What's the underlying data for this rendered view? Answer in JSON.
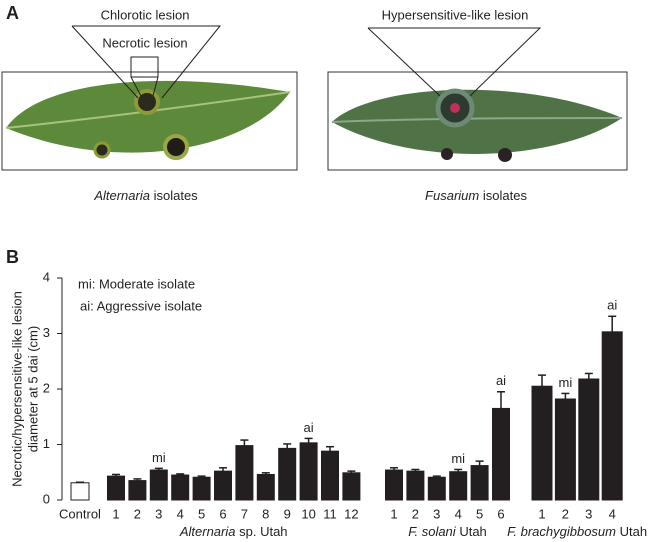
{
  "panel_a": {
    "label": "A",
    "callouts": [
      "Chlorotic lesion",
      "Necrotic lesion",
      "Hypersensitive-like lesion"
    ],
    "captions": [
      {
        "italic": "Alternaria",
        "rest": "isolates"
      },
      {
        "italic": "Fusarium",
        "rest": "isolates"
      }
    ]
  },
  "chart_data": {
    "type": "bar",
    "panel_label": "B",
    "ylabel": [
      "Necrotic/hypersensitive-like lesion",
      "diameter at 5 dai (cm)"
    ],
    "notes": [
      "mi: Moderate isolate",
      "ai: Aggressive isolate"
    ],
    "ylim": [
      0,
      4
    ],
    "yticks": [
      0,
      1,
      2,
      3,
      4
    ],
    "groups": [
      {
        "color": "#ffffff",
        "categories": [
          "Control"
        ],
        "values": [
          0.31
        ],
        "errors": [
          0.01
        ],
        "tags": [
          null
        ]
      },
      {
        "name": {
          "italic": "Alternaria",
          "rest": "sp. Utah"
        },
        "color": "#231f20",
        "categories": [
          "1",
          "2",
          "3",
          "4",
          "5",
          "6",
          "7",
          "8",
          "9",
          "10",
          "11",
          "12"
        ],
        "values": [
          0.43,
          0.35,
          0.54,
          0.45,
          0.41,
          0.52,
          0.98,
          0.46,
          0.93,
          1.03,
          0.88,
          0.49
        ],
        "errors": [
          0.03,
          0.03,
          0.03,
          0.02,
          0.02,
          0.06,
          0.1,
          0.03,
          0.08,
          0.08,
          0.08,
          0.03
        ],
        "tags": [
          null,
          null,
          "mi",
          null,
          null,
          null,
          null,
          null,
          null,
          "ai",
          null,
          null
        ]
      },
      {
        "name": {
          "italic": "F. solani",
          "rest": "Utah"
        },
        "color": "#231f20",
        "categories": [
          "1",
          "2",
          "3",
          "4",
          "5",
          "6"
        ],
        "values": [
          0.54,
          0.52,
          0.41,
          0.51,
          0.62,
          1.65
        ],
        "errors": [
          0.04,
          0.03,
          0.02,
          0.04,
          0.08,
          0.3
        ],
        "tags": [
          null,
          null,
          null,
          "mi",
          null,
          "ai"
        ]
      },
      {
        "name": {
          "italic": "F. brachygibbosum",
          "rest": "Utah"
        },
        "color": "#231f20",
        "categories": [
          "1",
          "2",
          "3",
          "4"
        ],
        "values": [
          2.05,
          1.82,
          2.18,
          3.03
        ],
        "errors": [
          0.2,
          0.1,
          0.1,
          0.28
        ],
        "tags": [
          null,
          "mi",
          null,
          "ai"
        ]
      }
    ]
  }
}
